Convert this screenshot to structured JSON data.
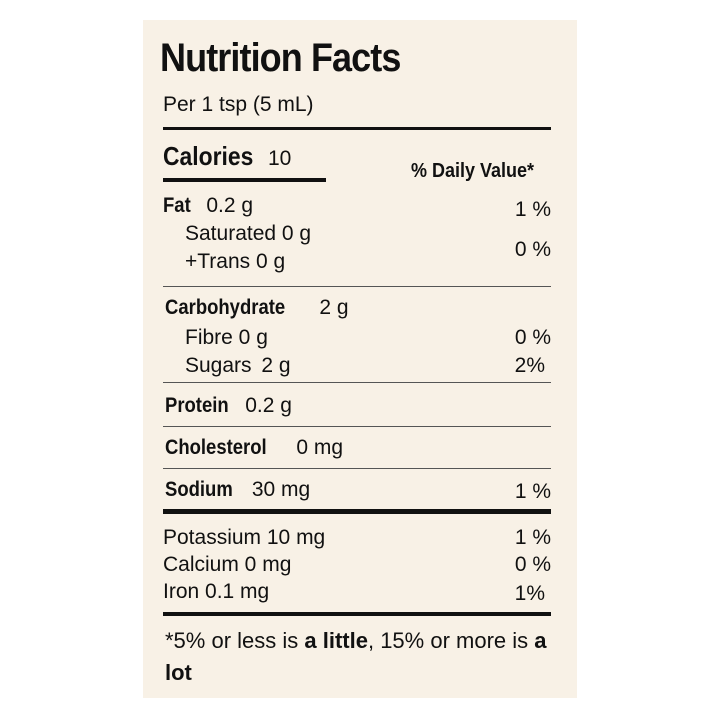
{
  "title": "Nutrition Facts",
  "serving": "Per 1 tsp (5 mL)",
  "calories": {
    "label": "Calories",
    "value": "10"
  },
  "dv_header": "% Daily Value*",
  "fat": {
    "label": "Fat",
    "amount": "0.2 g",
    "dv": "1 %"
  },
  "saturated": {
    "label": "Saturated 0 g"
  },
  "trans": {
    "label": "+Trans 0 g",
    "dv": "0 %"
  },
  "carbohydrate": {
    "label": "Carbohydrate",
    "amount": "2 g"
  },
  "fibre": {
    "label": "Fibre 0 g",
    "dv": "0 %"
  },
  "sugars": {
    "label": "Sugars",
    "amount": "2 g",
    "dv": "2%"
  },
  "protein": {
    "label": "Protein",
    "amount": "0.2 g"
  },
  "cholesterol": {
    "label": "Cholesterol",
    "amount": "0 mg"
  },
  "sodium": {
    "label": "Sodium",
    "amount": "30 mg",
    "dv": "1 %"
  },
  "potassium": {
    "label": "Potassium 10 mg",
    "dv": "1 %"
  },
  "calcium": {
    "label": "Calcium 0 mg",
    "dv": "0 %"
  },
  "iron": {
    "label": "Iron 0.1 mg",
    "dv": "1%"
  },
  "footnote": {
    "part1": "*5% or less is ",
    "little": "a little",
    "part2": ", 15% or more is ",
    "lot": "a lot"
  },
  "colors": {
    "background": "#f8f1e6",
    "text": "#111111"
  }
}
